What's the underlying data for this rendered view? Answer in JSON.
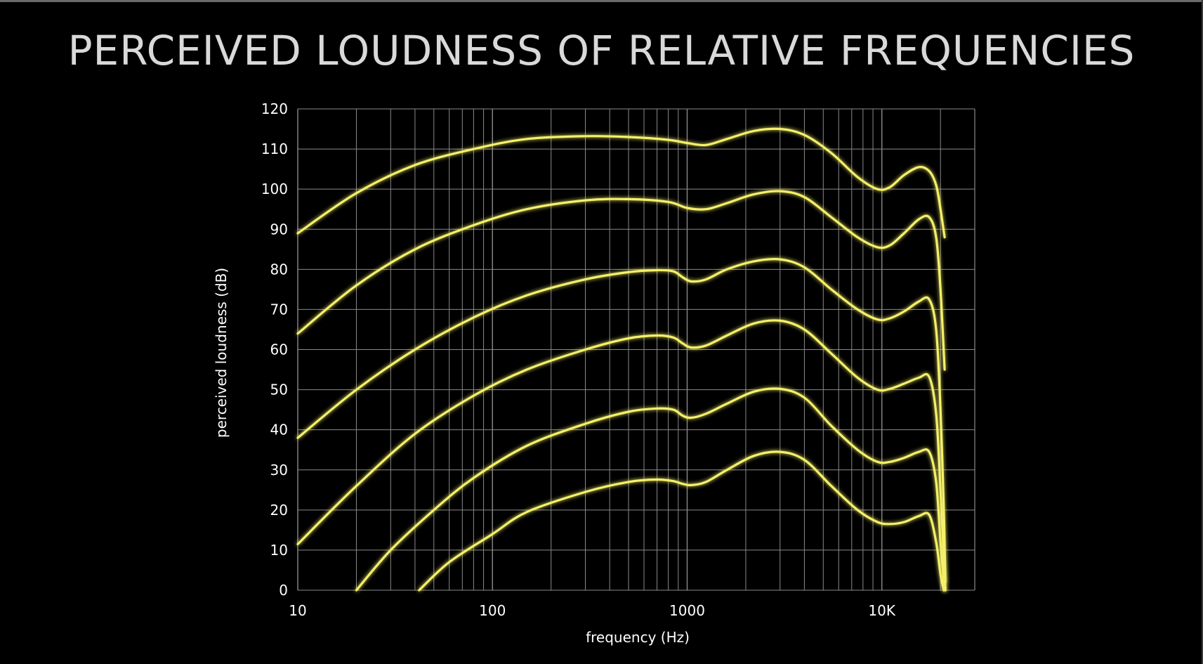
{
  "chart_data": {
    "type": "line",
    "title": "PERCEIVED LOUDNESS OF RELATIVE FREQUENCIES",
    "xlabel": "frequency (Hz)",
    "ylabel": "perceived loudness (dB)",
    "xscale": "log",
    "xlim": [
      10,
      30000
    ],
    "ylim": [
      0,
      120
    ],
    "x_ticks": [
      {
        "value": 10,
        "label": "10"
      },
      {
        "value": 100,
        "label": "100"
      },
      {
        "value": 1000,
        "label": "1000"
      },
      {
        "value": 10000,
        "label": "10K"
      }
    ],
    "y_ticks": [
      0,
      10,
      20,
      30,
      40,
      50,
      60,
      70,
      80,
      90,
      100,
      110,
      120
    ],
    "grid": true,
    "legend": "none",
    "line_color": "#f4f06a",
    "series": [
      {
        "points": [
          [
            10,
            89
          ],
          [
            20,
            99
          ],
          [
            40,
            106
          ],
          [
            80,
            110
          ],
          [
            150,
            112.5
          ],
          [
            300,
            113.2
          ],
          [
            500,
            113
          ],
          [
            800,
            112.3
          ],
          [
            1000,
            111.5
          ],
          [
            1250,
            111
          ],
          [
            1600,
            112.5
          ],
          [
            2200,
            114.5
          ],
          [
            3000,
            115
          ],
          [
            4000,
            113.5
          ],
          [
            5500,
            109
          ],
          [
            7500,
            103
          ],
          [
            9500,
            100
          ],
          [
            11000,
            100.5
          ],
          [
            13000,
            103.5
          ],
          [
            15500,
            105.5
          ],
          [
            17500,
            104.5
          ],
          [
            19000,
            101
          ],
          [
            20000,
            95
          ],
          [
            21000,
            88
          ]
        ]
      },
      {
        "points": [
          [
            10,
            64
          ],
          [
            20,
            76
          ],
          [
            40,
            85
          ],
          [
            80,
            91
          ],
          [
            150,
            95
          ],
          [
            300,
            97.2
          ],
          [
            500,
            97.5
          ],
          [
            800,
            96.8
          ],
          [
            1000,
            95.3
          ],
          [
            1250,
            95
          ],
          [
            1600,
            96.5
          ],
          [
            2200,
            98.7
          ],
          [
            3000,
            99.5
          ],
          [
            4000,
            98
          ],
          [
            5500,
            93
          ],
          [
            7500,
            88
          ],
          [
            9500,
            85.5
          ],
          [
            11000,
            86
          ],
          [
            13000,
            89
          ],
          [
            15500,
            92.5
          ],
          [
            17500,
            93
          ],
          [
            19000,
            88
          ],
          [
            20000,
            75
          ],
          [
            21000,
            55
          ]
        ]
      },
      {
        "points": [
          [
            10,
            38
          ],
          [
            20,
            50
          ],
          [
            40,
            60
          ],
          [
            80,
            68
          ],
          [
            150,
            73.5
          ],
          [
            300,
            77.5
          ],
          [
            500,
            79.3
          ],
          [
            700,
            79.8
          ],
          [
            850,
            79.5
          ],
          [
            950,
            78
          ],
          [
            1050,
            77
          ],
          [
            1250,
            77.5
          ],
          [
            1600,
            80
          ],
          [
            2200,
            82
          ],
          [
            3000,
            82.5
          ],
          [
            4000,
            80.5
          ],
          [
            5500,
            75
          ],
          [
            7500,
            70
          ],
          [
            9500,
            67.5
          ],
          [
            11000,
            67.8
          ],
          [
            13000,
            69.5
          ],
          [
            15500,
            72
          ],
          [
            17500,
            72.5
          ],
          [
            19000,
            65
          ],
          [
            20000,
            45
          ],
          [
            20800,
            20
          ],
          [
            21200,
            2
          ]
        ]
      },
      {
        "points": [
          [
            10,
            11.5
          ],
          [
            20,
            26
          ],
          [
            40,
            39
          ],
          [
            80,
            48.5
          ],
          [
            150,
            55
          ],
          [
            300,
            60
          ],
          [
            500,
            62.8
          ],
          [
            700,
            63.5
          ],
          [
            850,
            63
          ],
          [
            950,
            61.5
          ],
          [
            1050,
            60.5
          ],
          [
            1250,
            61
          ],
          [
            1600,
            63.5
          ],
          [
            2200,
            66.5
          ],
          [
            3000,
            67.2
          ],
          [
            4000,
            65
          ],
          [
            5500,
            59
          ],
          [
            7500,
            53
          ],
          [
            9500,
            50
          ],
          [
            11000,
            50.2
          ],
          [
            13000,
            51.5
          ],
          [
            15500,
            53
          ],
          [
            17500,
            53.2
          ],
          [
            19000,
            44
          ],
          [
            20000,
            25
          ],
          [
            20800,
            8
          ],
          [
            21200,
            0
          ]
        ]
      },
      {
        "points": [
          [
            20,
            0
          ],
          [
            30,
            10
          ],
          [
            50,
            20
          ],
          [
            80,
            28
          ],
          [
            150,
            36
          ],
          [
            300,
            41.5
          ],
          [
            500,
            44.5
          ],
          [
            700,
            45.3
          ],
          [
            850,
            45
          ],
          [
            950,
            43.5
          ],
          [
            1050,
            43
          ],
          [
            1250,
            44
          ],
          [
            1600,
            46.5
          ],
          [
            2200,
            49.5
          ],
          [
            3000,
            50.2
          ],
          [
            4000,
            48
          ],
          [
            5500,
            41
          ],
          [
            7500,
            35
          ],
          [
            9500,
            32
          ],
          [
            11000,
            32
          ],
          [
            13000,
            33
          ],
          [
            15500,
            34.5
          ],
          [
            17500,
            34.5
          ],
          [
            19000,
            27
          ],
          [
            20000,
            12
          ],
          [
            20800,
            2
          ],
          [
            21000,
            0
          ]
        ]
      },
      {
        "points": [
          [
            42,
            0
          ],
          [
            60,
            7
          ],
          [
            100,
            14
          ],
          [
            150,
            19.5
          ],
          [
            300,
            24.5
          ],
          [
            500,
            27
          ],
          [
            700,
            27.6
          ],
          [
            850,
            27.2
          ],
          [
            950,
            26.5
          ],
          [
            1050,
            26.2
          ],
          [
            1250,
            27
          ],
          [
            1600,
            30
          ],
          [
            2200,
            33.5
          ],
          [
            3000,
            34.5
          ],
          [
            4000,
            32.5
          ],
          [
            5500,
            26
          ],
          [
            7500,
            20
          ],
          [
            9500,
            17
          ],
          [
            11000,
            16.5
          ],
          [
            13000,
            17
          ],
          [
            15500,
            18.5
          ],
          [
            17500,
            18.8
          ],
          [
            19000,
            12
          ],
          [
            20000,
            4
          ],
          [
            20800,
            0
          ]
        ]
      }
    ]
  }
}
